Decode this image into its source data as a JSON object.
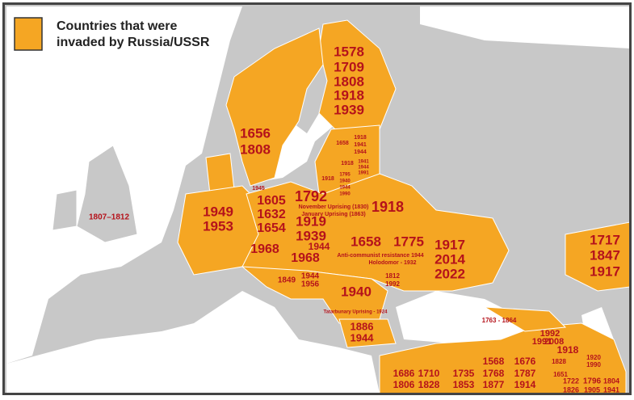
{
  "legend": {
    "lines": [
      "Countries that were",
      "invaded by Russia/USSR"
    ]
  },
  "labels": [
    "1578",
    "1709",
    "1808",
    "1918",
    "1939",
    "1656",
    "1808",
    "1658",
    "1918",
    "1941",
    "1944",
    "1918",
    "1941",
    "1944",
    "1991",
    "1918",
    "1795",
    "1940",
    "1944",
    "1990",
    "1945",
    "1807–1812",
    "1949",
    "1953",
    "1605",
    "1632",
    "1654",
    "1792",
    "November Uprising (1830)",
    "January Uprising (1863)",
    "1918",
    "1919",
    "1939",
    "1944",
    "1968",
    "1968",
    "1658",
    "1775",
    "1917",
    "2014",
    "2022",
    "Anti-communist resistance 1944",
    "Holodomor - 1932",
    "1812",
    "1992",
    "1849",
    "1944",
    "1956",
    "1940",
    "Tatarbunary Uprising - 1924",
    "1886",
    "1944",
    "1763 - 1864",
    "1992",
    "1991",
    "2008",
    "1918",
    "1920",
    "1990",
    "1686",
    "1806",
    "1710",
    "1828",
    "1735",
    "1853",
    "1568",
    "1768",
    "1877",
    "1676",
    "1787",
    "1914",
    "1828",
    "1651",
    "1722",
    "1826",
    "1796",
    "1905",
    "1804",
    "1941",
    "1717",
    "1847",
    "1917"
  ]
}
